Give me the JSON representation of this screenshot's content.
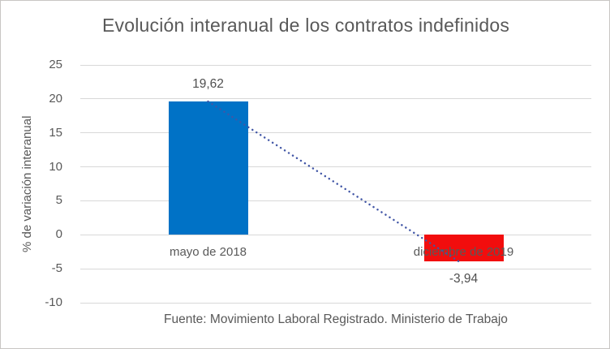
{
  "chart_data": {
    "type": "bar",
    "title": "Evolución interanual de los contratos indefinidos",
    "ylabel": "% de variación interanual",
    "xlabel": "",
    "categories": [
      "mayo de 2018",
      "diciembre de 2019"
    ],
    "values": [
      19.62,
      -3.94
    ],
    "value_labels": [
      "19,62",
      "-3,94"
    ],
    "bar_colors": [
      "#0072C6",
      "#F20D0D"
    ],
    "ylim": [
      -10,
      25
    ],
    "yticks": [
      25,
      20,
      15,
      10,
      5,
      0,
      -5,
      -10
    ],
    "ytick_labels": [
      "25",
      "20",
      "15",
      "10",
      "5",
      "0",
      "-5",
      "-10"
    ],
    "grid": true,
    "legend": "none",
    "trendline": {
      "type": "linear",
      "style": "dotted",
      "color": "#4156A6",
      "from_value": 19.62,
      "to_value": -3.94
    },
    "source_note": "Fuente: Movimiento Laboral Registrado. Ministerio de Trabajo",
    "colors": {
      "text": "#595959",
      "gridline": "#D8D8D8",
      "frame_border": "#C8C6C4",
      "background": "#FFFFFF"
    }
  }
}
